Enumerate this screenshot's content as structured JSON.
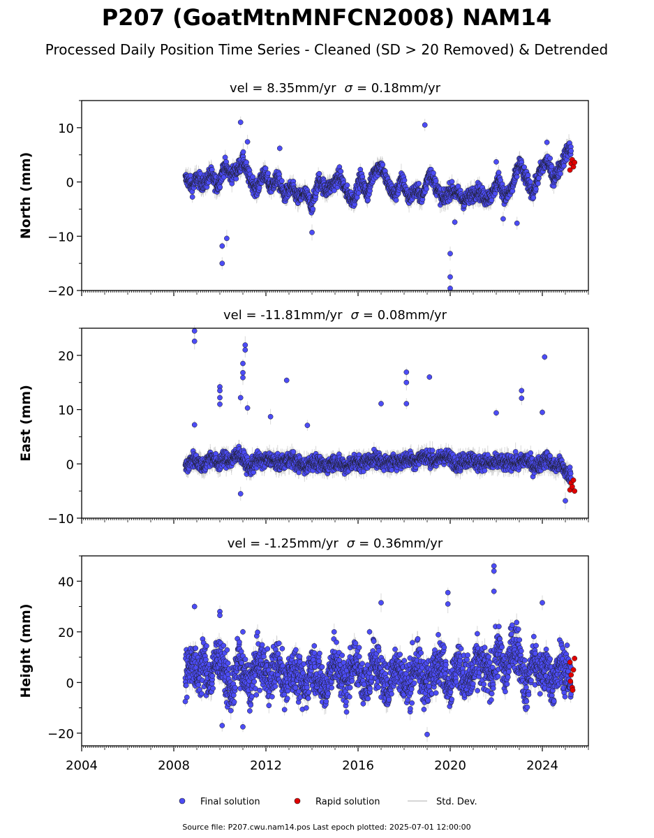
{
  "title": "P207 (GoatMtnMNFCN2008) NAM14",
  "subtitle": "Processed Daily Position Time Series - Cleaned (SD > 20 Removed) & Detrended",
  "footer": "Source file: P207.cwu.nam14.pos  Last epoch plotted: 2025-07-01 12:00:00",
  "legend": {
    "final": "Final solution",
    "rapid": "Rapid solution",
    "sd": "Std. Dev."
  },
  "colors": {
    "final": "#4c4cf5",
    "rapid": "#e00000",
    "sd": "#c8c8c8",
    "edge": "#1a1a1a"
  },
  "chart_data": [
    {
      "type": "scatter",
      "title_vel": "vel = 8.35mm/yr",
      "title_sigma": "= 0.18mm/yr",
      "ylabel": "North (mm)",
      "xlim": [
        2004.0,
        2026.0
      ],
      "ylim": [
        -20,
        15
      ],
      "yticks": [
        10,
        0,
        -10,
        -20
      ],
      "x_range": [
        2008.5,
        2025.25
      ],
      "series": [
        {
          "name": "Final solution",
          "x": [
            2008.6,
            2008.8,
            2009.0,
            2009.3,
            2009.6,
            2009.9,
            2010.2,
            2010.5,
            2010.8,
            2011.0,
            2011.3,
            2011.6,
            2011.9,
            2012.2,
            2012.5,
            2012.8,
            2013.1,
            2013.4,
            2013.7,
            2014.0,
            2014.3,
            2014.6,
            2014.9,
            2015.2,
            2015.5,
            2015.8,
            2016.1,
            2016.4,
            2016.7,
            2017.0,
            2017.3,
            2017.6,
            2017.9,
            2018.2,
            2018.5,
            2018.8,
            2019.1,
            2019.4,
            2019.7,
            2020.0,
            2020.3,
            2020.6,
            2020.9,
            2021.2,
            2021.5,
            2021.8,
            2022.1,
            2022.4,
            2022.7,
            2023.0,
            2023.3,
            2023.6,
            2023.9,
            2024.2,
            2024.5,
            2024.8,
            2025.1
          ],
          "y": [
            0.5,
            -1.0,
            0.8,
            -0.5,
            1.5,
            -0.8,
            3.0,
            1.2,
            2.5,
            4.0,
            0.5,
            -1.5,
            1.8,
            -1.0,
            0.8,
            -2.5,
            -1.0,
            -3.0,
            -2.0,
            -4.5,
            0.5,
            -1.5,
            -0.5,
            1.2,
            -2.0,
            -3.5,
            0.8,
            -2.5,
            2.0,
            3.0,
            -0.5,
            -2.5,
            0.5,
            -3.0,
            -1.5,
            -2.8,
            2.0,
            -1.0,
            -3.5,
            -1.5,
            -2.0,
            -3.5,
            -2.5,
            -1.5,
            -3.0,
            -2.5,
            0.5,
            -3.0,
            -1.0,
            3.5,
            0.5,
            -2.0,
            2.0,
            4.0,
            0.5,
            3.0,
            6.0
          ],
          "outliers": [
            [
              2010.1,
              -15.0
            ],
            [
              2010.1,
              -11.8
            ],
            [
              2010.3,
              -10.4
            ],
            [
              2010.9,
              11.0
            ],
            [
              2011.2,
              7.4
            ],
            [
              2012.6,
              6.2
            ],
            [
              2014.0,
              -9.3
            ],
            [
              2018.9,
              10.5
            ],
            [
              2020.0,
              -17.5
            ],
            [
              2020.0,
              -19.6
            ],
            [
              2020.0,
              -13.2
            ],
            [
              2020.2,
              -7.4
            ],
            [
              2022.0,
              3.7
            ],
            [
              2022.3,
              -6.8
            ],
            [
              2022.9,
              -7.6
            ],
            [
              2024.2,
              7.3
            ]
          ]
        },
        {
          "name": "Rapid solution",
          "x": [
            2025.2,
            2025.25,
            2025.3,
            2025.35,
            2025.4
          ],
          "y": [
            2.2,
            3.4,
            4.1,
            2.8,
            3.6
          ]
        }
      ]
    },
    {
      "type": "scatter",
      "title_vel": "vel = -11.81mm/yr",
      "title_sigma": "= 0.08mm/yr",
      "ylabel": "East (mm)",
      "xlim": [
        2004.0,
        2026.0
      ],
      "ylim": [
        -10,
        25
      ],
      "yticks": [
        20,
        10,
        0,
        -10
      ],
      "x_range": [
        2008.5,
        2025.25
      ],
      "series": [
        {
          "name": "Final solution",
          "x": [
            2008.6,
            2008.8,
            2009.0,
            2009.3,
            2009.6,
            2009.9,
            2010.2,
            2010.5,
            2010.8,
            2011.0,
            2011.3,
            2011.6,
            2011.9,
            2012.2,
            2012.5,
            2012.8,
            2013.1,
            2013.4,
            2013.7,
            2014.0,
            2014.3,
            2014.6,
            2014.9,
            2015.2,
            2015.5,
            2015.8,
            2016.1,
            2016.4,
            2016.7,
            2017.0,
            2017.3,
            2017.6,
            2017.9,
            2018.2,
            2018.5,
            2018.8,
            2019.1,
            2019.4,
            2019.7,
            2020.0,
            2020.3,
            2020.6,
            2020.9,
            2021.2,
            2021.5,
            2021.8,
            2022.1,
            2022.4,
            2022.7,
            2023.0,
            2023.3,
            2023.6,
            2023.9,
            2024.2,
            2024.5,
            2024.8,
            2025.1
          ],
          "y": [
            -0.5,
            1.0,
            0.5,
            -0.5,
            1.5,
            0.0,
            1.0,
            0.5,
            2.0,
            1.0,
            -1.0,
            0.8,
            0.5,
            1.0,
            0.0,
            0.5,
            1.0,
            0.0,
            -0.5,
            0.5,
            0.0,
            -0.5,
            0.5,
            0.0,
            -0.5,
            0.5,
            0.0,
            0.5,
            1.0,
            0.5,
            0.0,
            0.5,
            0.5,
            1.0,
            0.5,
            1.5,
            1.0,
            0.5,
            1.5,
            1.0,
            0.0,
            0.5,
            1.0,
            0.0,
            0.5,
            0.0,
            0.5,
            0.0,
            0.5,
            0.0,
            1.0,
            -0.5,
            0.0,
            1.0,
            -0.5,
            0.0,
            -2.0
          ],
          "outliers": [
            [
              2008.9,
              24.5
            ],
            [
              2008.9,
              22.6
            ],
            [
              2008.9,
              7.2
            ],
            [
              2010.0,
              14.2
            ],
            [
              2010.0,
              13.5
            ],
            [
              2010.0,
              12.2
            ],
            [
              2010.0,
              11.0
            ],
            [
              2010.9,
              12.2
            ],
            [
              2011.1,
              21.0
            ],
            [
              2011.1,
              21.9
            ],
            [
              2011.0,
              18.5
            ],
            [
              2011.0,
              16.8
            ],
            [
              2011.2,
              10.3
            ],
            [
              2011.0,
              15.9
            ],
            [
              2012.9,
              15.4
            ],
            [
              2012.2,
              8.7
            ],
            [
              2013.8,
              7.1
            ],
            [
              2017.0,
              11.1
            ],
            [
              2018.1,
              16.9
            ],
            [
              2018.1,
              15.0
            ],
            [
              2018.1,
              11.1
            ],
            [
              2019.1,
              16.0
            ],
            [
              2022.0,
              9.4
            ],
            [
              2023.1,
              13.5
            ],
            [
              2023.1,
              12.1
            ],
            [
              2024.1,
              19.7
            ],
            [
              2024.0,
              9.5
            ],
            [
              2010.9,
              -5.5
            ],
            [
              2025.0,
              -6.8
            ]
          ]
        },
        {
          "name": "Rapid solution",
          "x": [
            2025.2,
            2025.25,
            2025.3,
            2025.35,
            2025.4
          ],
          "y": [
            -4.8,
            -3.5,
            -4.2,
            -3.0,
            -5.0
          ]
        }
      ]
    },
    {
      "type": "scatter",
      "title_vel": "vel = -1.25mm/yr",
      "title_sigma": "= 0.36mm/yr",
      "ylabel": "Height (mm)",
      "xlim": [
        2004.0,
        2026.0
      ],
      "ylim": [
        -25,
        50
      ],
      "yticks": [
        40,
        20,
        0,
        -20
      ],
      "x_range": [
        2008.5,
        2025.25
      ],
      "series": [
        {
          "name": "Final solution",
          "x": [
            2008.6,
            2008.8,
            2009.0,
            2009.3,
            2009.6,
            2009.9,
            2010.2,
            2010.5,
            2010.8,
            2011.0,
            2011.3,
            2011.6,
            2011.9,
            2012.2,
            2012.5,
            2012.8,
            2013.1,
            2013.4,
            2013.7,
            2014.0,
            2014.3,
            2014.6,
            2014.9,
            2015.2,
            2015.5,
            2015.8,
            2016.1,
            2016.4,
            2016.7,
            2017.0,
            2017.3,
            2017.6,
            2017.9,
            2018.2,
            2018.5,
            2018.8,
            2019.1,
            2019.4,
            2019.7,
            2020.0,
            2020.3,
            2020.6,
            2020.9,
            2021.2,
            2021.5,
            2021.8,
            2022.1,
            2022.4,
            2022.7,
            2023.0,
            2023.3,
            2023.6,
            2023.9,
            2024.2,
            2024.5,
            2024.8,
            2025.1
          ],
          "y": [
            5.0,
            10.0,
            2.0,
            8.0,
            0.0,
            12.0,
            4.0,
            -5.0,
            10.0,
            3.0,
            -2.0,
            8.0,
            6.0,
            1.0,
            9.0,
            -1.0,
            6.0,
            2.0,
            -3.0,
            8.0,
            2.0,
            -4.0,
            9.0,
            4.0,
            -2.0,
            10.0,
            3.0,
            -3.0,
            10.0,
            4.0,
            -4.0,
            8.0,
            2.0,
            -2.0,
            8.0,
            1.0,
            -1.0,
            10.0,
            6.0,
            -2.0,
            8.0,
            2.0,
            0.0,
            9.0,
            5.0,
            2.0,
            14.0,
            2.0,
            15.0,
            12.0,
            -4.0,
            10.0,
            3.0,
            6.0,
            -1.0,
            8.0,
            2.0
          ],
          "outliers": [
            [
              2008.9,
              30.0
            ],
            [
              2010.0,
              28.0
            ],
            [
              2010.0,
              26.5
            ],
            [
              2011.0,
              20.0
            ],
            [
              2016.5,
              20.0
            ],
            [
              2017.0,
              31.5
            ],
            [
              2019.9,
              35.5
            ],
            [
              2019.9,
              31.0
            ],
            [
              2021.9,
              46.0
            ],
            [
              2021.9,
              44.0
            ],
            [
              2021.9,
              36.0
            ],
            [
              2024.0,
              31.5
            ],
            [
              2019.0,
              -20.5
            ],
            [
              2011.0,
              -17.5
            ],
            [
              2010.1,
              -17.0
            ],
            [
              2008.5,
              -7.5
            ]
          ]
        },
        {
          "name": "Rapid solution",
          "x": [
            2025.2,
            2025.25,
            2025.3,
            2025.35,
            2025.4,
            2025.22,
            2025.32
          ],
          "y": [
            8.0,
            3.0,
            -2.0,
            5.0,
            9.5,
            0.5,
            -3.0
          ]
        }
      ]
    }
  ],
  "xticks": [
    2004,
    2008,
    2012,
    2016,
    2020,
    2024
  ]
}
